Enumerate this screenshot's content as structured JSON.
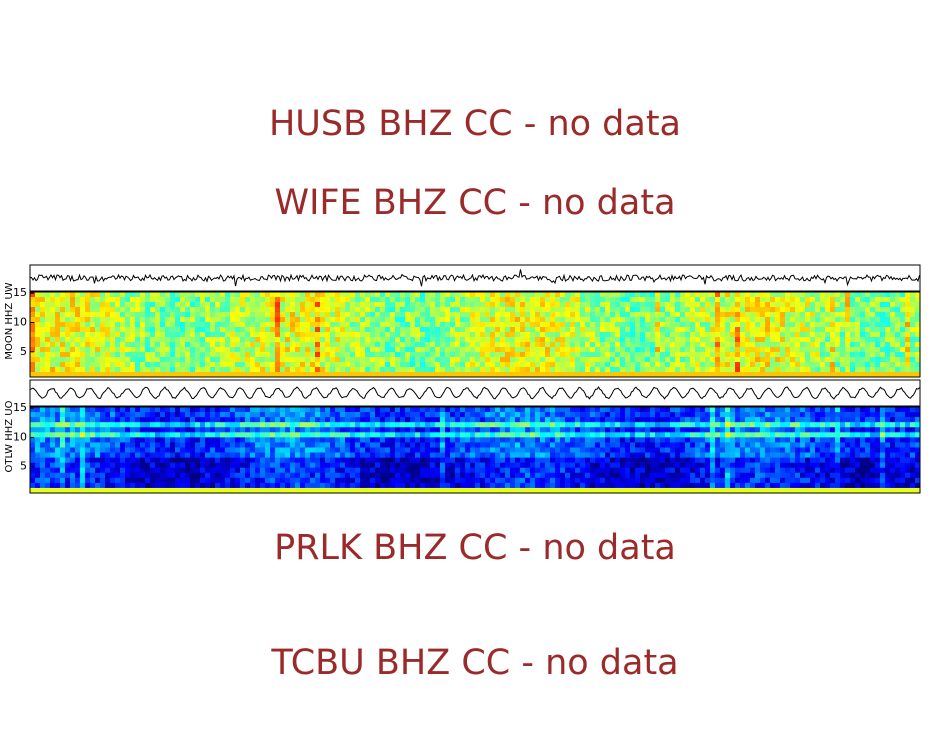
{
  "messages": [
    "HUSB BHZ CC - no data",
    "WIFE BHZ CC - no data",
    "PRLK BHZ CC - no data",
    "TCBU BHZ CC - no data"
  ],
  "chart_data": [
    {
      "type": "spectrogram",
      "ylabel": "MOON HHZ UW",
      "ylim": [
        0.7,
        15.2
      ],
      "yticks": [
        5,
        10,
        15
      ],
      "colormap": "jet"
    },
    {
      "type": "spectrogram",
      "ylabel": "OTLW HHZ UO",
      "ylim": [
        0.5,
        15.2
      ],
      "yticks": [
        5,
        10,
        15
      ],
      "colormap": "jet"
    }
  ]
}
